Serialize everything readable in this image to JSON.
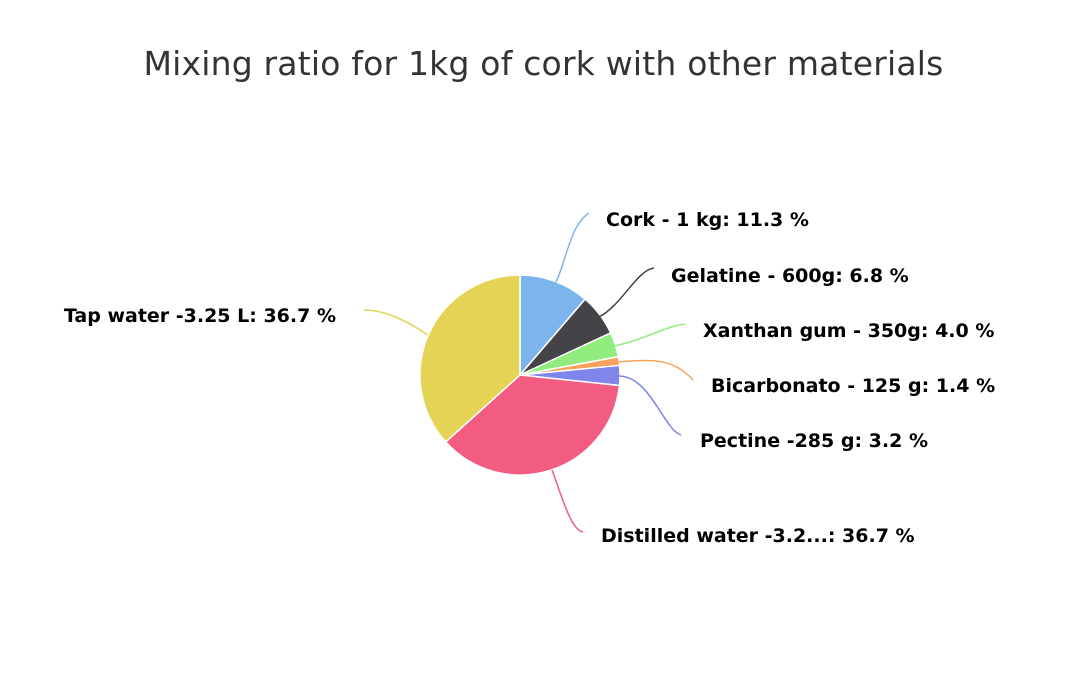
{
  "chart_data": {
    "type": "pie",
    "title": "Mixing ratio for 1kg of cork with other materials",
    "slices": [
      {
        "label": "Cork - 1 kg: 11.3 %",
        "value": 11.3,
        "color": "#7cb5ec"
      },
      {
        "label": "Gelatine - 600g: 6.8 %",
        "value": 6.8,
        "color": "#434348"
      },
      {
        "label": "Xanthan gum - 350g: 4.0 %",
        "value": 4.0,
        "color": "#90ed7d"
      },
      {
        "label": "Bicarbonato - 125 g: 1.4 %",
        "value": 1.4,
        "color": "#f7a35c"
      },
      {
        "label": "Pectine -285 g: 3.2 %",
        "value": 3.2,
        "color": "#8085e9"
      },
      {
        "label": "Distilled water -3.2...: 36.7 %",
        "value": 36.7,
        "color": "#f15c80"
      },
      {
        "label": "Tap water -3.25 L: 36.7 %",
        "value": 36.7,
        "color": "#e4d354"
      }
    ]
  }
}
